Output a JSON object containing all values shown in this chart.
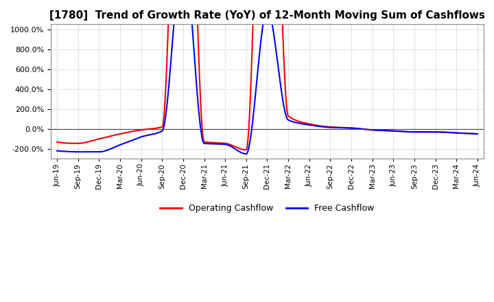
{
  "title": "[1780]  Trend of Growth Rate (YoY) of 12-Month Moving Sum of Cashflows",
  "title_fontsize": 11,
  "ylim": [
    -300,
    1050
  ],
  "yticks": [
    -200,
    0,
    200,
    400,
    600,
    800,
    1000
  ],
  "background_color": "#ffffff",
  "grid_color": "#bbbbbb",
  "grid_style": "dotted",
  "operating_color": "#ff0000",
  "free_color": "#0000ff",
  "legend_labels": [
    "Operating Cashflow",
    "Free Cashflow"
  ],
  "x_labels": [
    "Jun-19",
    "Sep-19",
    "Dec-19",
    "Mar-20",
    "Jun-20",
    "Sep-20",
    "Dec-20",
    "Mar-21",
    "Jun-21",
    "Sep-21",
    "Dec-21",
    "Mar-22",
    "Jun-22",
    "Sep-22",
    "Dec-22",
    "Mar-23",
    "Jun-23",
    "Sep-23",
    "Dec-23",
    "Mar-24",
    "Jun-24"
  ],
  "operating_cashflow": [
    -130,
    -145,
    -100,
    -50,
    -10,
    20,
    5000,
    -130,
    -145,
    -210,
    5000,
    130,
    50,
    20,
    10,
    -10,
    -20,
    -30,
    -30,
    -40,
    -50
  ],
  "free_cashflow": [
    -220,
    -230,
    -230,
    -160,
    -80,
    -20,
    1800,
    -145,
    -155,
    -250,
    1200,
    90,
    40,
    15,
    8,
    -10,
    -20,
    -30,
    -30,
    -40,
    -50
  ]
}
